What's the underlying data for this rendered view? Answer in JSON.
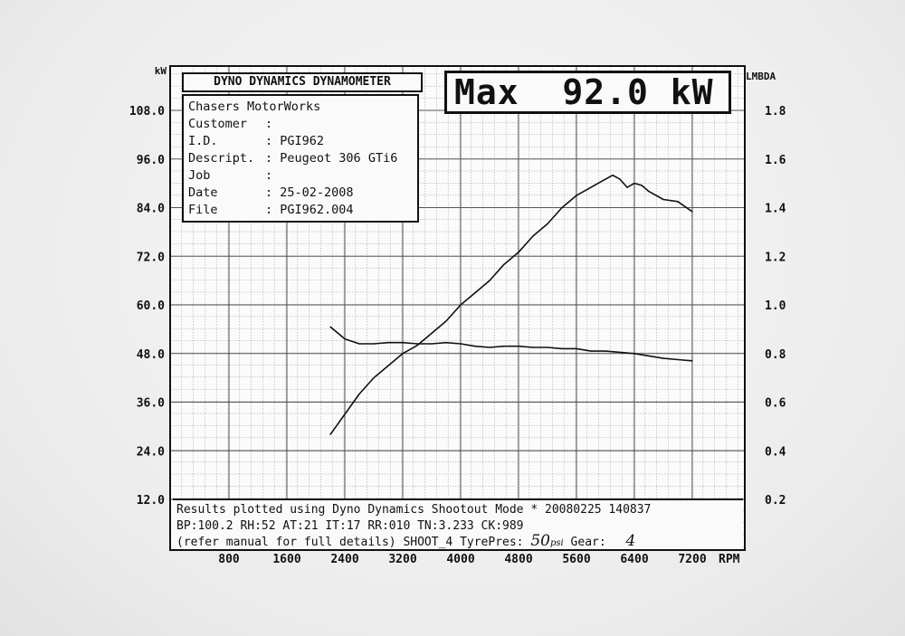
{
  "chart_data": {
    "type": "line",
    "x_unit": "RPM",
    "y_left_unit": "kW",
    "y_right_unit": "LMBDA",
    "xlim": [
      0,
      7800
    ],
    "x_ticks": [
      "800",
      "1600",
      "2400",
      "3200",
      "4000",
      "4800",
      "5600",
      "6400",
      "7200"
    ],
    "y_left_ticks": [
      "108.0",
      "96.0",
      "84.0",
      "72.0",
      "60.0",
      "48.0",
      "36.0",
      "24.0",
      "12.0"
    ],
    "y_left_range": [
      12,
      108
    ],
    "y_right_ticks": [
      "1.8",
      "1.6",
      "1.4",
      "1.2",
      "1.0",
      "0.8",
      "0.6",
      "0.4",
      "0.2"
    ],
    "y_right_range": [
      0.2,
      1.8
    ],
    "grid": true,
    "series": [
      {
        "axis": "left",
        "x": [
          2200,
          2400,
          2600,
          2800,
          3000,
          3200,
          3400,
          3600,
          3800,
          4000,
          4200,
          4400,
          4600,
          4800,
          5000,
          5200,
          5400,
          5600,
          5800,
          6000,
          6100,
          6200,
          6300,
          6400,
          6500,
          6600,
          6800,
          7000,
          7200
        ],
        "values": [
          28,
          33,
          38,
          42,
          45,
          48,
          50,
          53,
          56,
          60,
          63,
          66,
          70,
          73,
          77,
          80,
          84,
          87,
          89,
          91,
          92,
          91,
          89,
          90,
          89.5,
          88,
          86,
          85.5,
          83
        ]
      },
      {
        "axis": "right",
        "x": [
          2200,
          2400,
          2600,
          2800,
          3000,
          3200,
          3400,
          3600,
          3800,
          4000,
          4200,
          4400,
          4600,
          4800,
          5000,
          5200,
          5400,
          5600,
          5800,
          6000,
          6200,
          6400,
          6600,
          6800,
          7000,
          7200
        ],
        "values": [
          0.91,
          0.86,
          0.84,
          0.84,
          0.845,
          0.845,
          0.84,
          0.84,
          0.845,
          0.84,
          0.83,
          0.825,
          0.83,
          0.83,
          0.825,
          0.825,
          0.82,
          0.82,
          0.81,
          0.81,
          0.805,
          0.8,
          0.79,
          0.78,
          0.775,
          0.77
        ]
      }
    ]
  },
  "header": {
    "title": "DYNO DYNAMICS DYNAMOMETER"
  },
  "max": {
    "text": "Max  92.0 kW"
  },
  "info": {
    "company": "Chasers MotorWorks",
    "rows": [
      {
        "key": "Customer",
        "sep": ":",
        "value": ""
      },
      {
        "key": "I.D.",
        "sep": ":",
        "value": "PGI962"
      },
      {
        "key": "Descript.",
        "sep": ":",
        "value": "Peugeot 306 GTi6"
      },
      {
        "key": "Job",
        "sep": ":",
        "value": ""
      },
      {
        "key": "Date",
        "sep": ":",
        "value": "25-02-2008"
      },
      {
        "key": "File",
        "sep": ":",
        "value": "PGI962.004"
      }
    ]
  },
  "footer": {
    "line1": "Results plotted using Dyno Dynamics Shootout Mode * 20080225 140837",
    "line2": "BP:100.2 RH:52 AT:21 IT:17  RR:010 TN:3.233 CK:989",
    "line3_prefix": "(refer manual for full details) SHOOT_4  TyrePres:",
    "tyre_value": "50",
    "tyre_unit": "psi",
    "gear_label": "Gear:",
    "gear_value": "4"
  }
}
